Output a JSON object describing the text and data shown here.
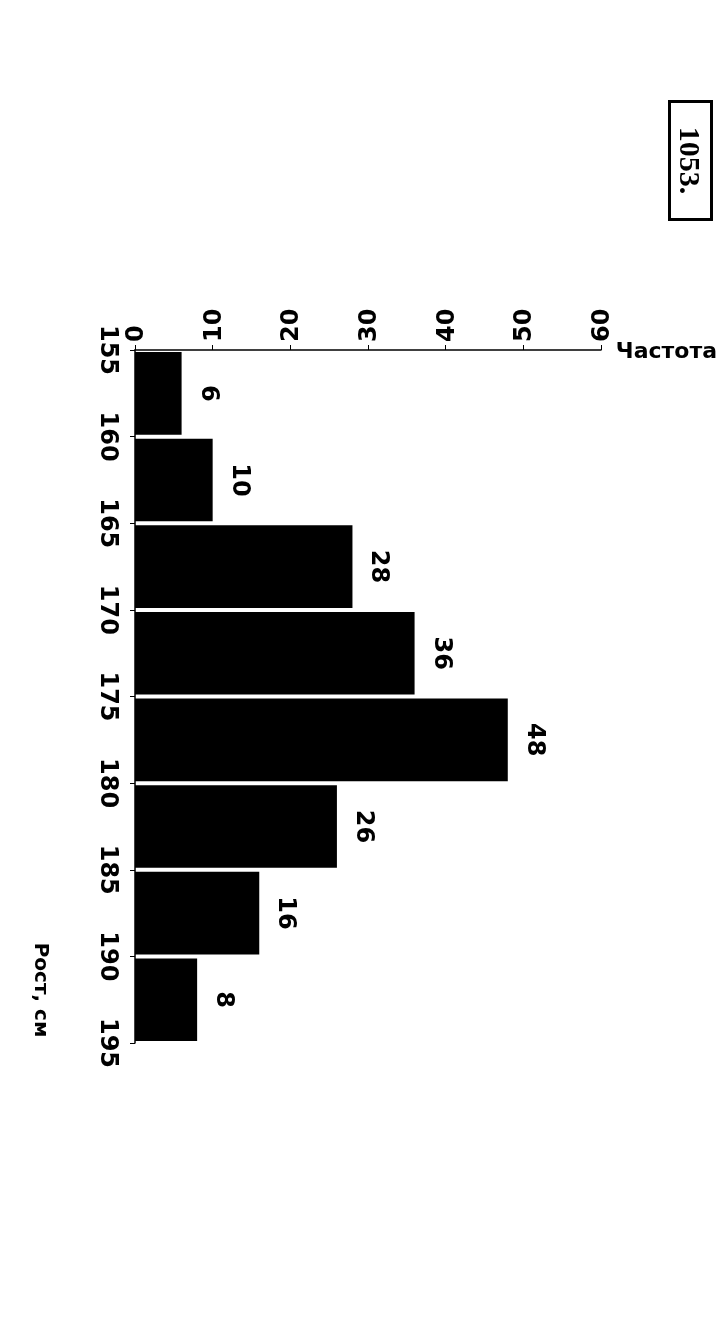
{
  "chart_data": {
    "type": "histogram",
    "orientation": "horizontal",
    "bins": [
      155,
      160,
      165,
      170,
      175,
      180,
      185,
      190,
      195
    ],
    "values": [
      6,
      10,
      28,
      36,
      48,
      26,
      16,
      8
    ],
    "color": "#000000",
    "xlabel": "Частота",
    "ylabel": "Рост, см",
    "xlim": [
      0,
      60
    ],
    "xticks": [
      0,
      10,
      20,
      30,
      40,
      50,
      60
    ],
    "ylim": [
      195,
      155
    ],
    "yticks": [
      155,
      160,
      165,
      170,
      175,
      180,
      185,
      190,
      195
    ],
    "data_labels": true,
    "grid": false,
    "annotations": [
      "1053."
    ]
  }
}
